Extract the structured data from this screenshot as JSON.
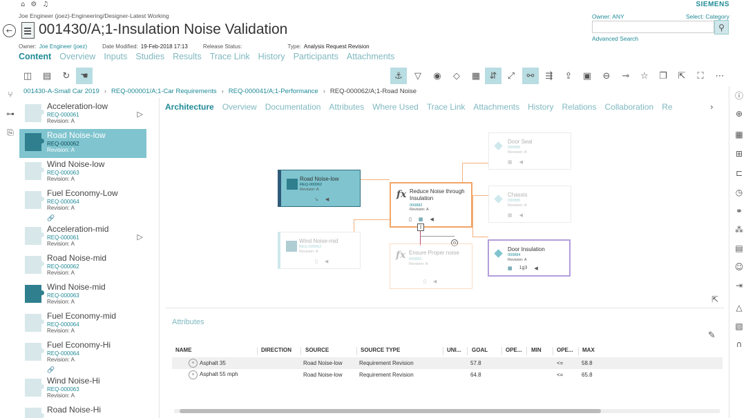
{
  "top": {
    "brand": "SIEMENS",
    "user_line": "Joe Engineer (joez)-Engineering/Designer-Latest Working",
    "owner_filter": "Owner: ANY",
    "select_category": "Select: Category",
    "advanced_search": "Advanced Search",
    "icons": [
      "home-icon",
      "gear-icon",
      "bell-icon"
    ]
  },
  "header": {
    "title": "001430/A;1-Insulation Noise Validation",
    "meta": {
      "owner_label": "Owner:",
      "owner_value": "Joe Engineer (joez)",
      "date_label": "Date Modified:",
      "date_value": "19-Feb-2018 17:13",
      "release_label": "Release Status:",
      "release_value": "",
      "type_label": "Type:",
      "type_value": "Analysis Request Revision"
    },
    "tabs": [
      "Content",
      "Overview",
      "Inputs",
      "Studies",
      "Results",
      "Trace Link",
      "History",
      "Participants",
      "Attachments"
    ]
  },
  "breadcrumb": [
    {
      "label": "001430-A-Small Car 2019",
      "link": true
    },
    {
      "label": "REQ-000001/A;1-Car Requirements",
      "link": true
    },
    {
      "label": "REQ-000041/A;1-Performance",
      "link": true
    },
    {
      "label": "REQ-000062/A;1-Road Noise",
      "link": false
    }
  ],
  "list": [
    {
      "name": "Acceleration-low",
      "id": "REQ-000061",
      "rev": "Revision:  A"
    },
    {
      "name": "Road Noise-low",
      "id": "REQ-000062",
      "rev": "Revision:  A"
    },
    {
      "name": "Wind Noise-low",
      "id": "REQ-000063",
      "rev": "Revision:  A"
    },
    {
      "name": "Fuel Economy-Low",
      "id": "REQ-000064",
      "rev": "Revision:  A"
    },
    {
      "name": "Acceleration-mid",
      "id": "REQ-000061",
      "rev": "Revision:  A"
    },
    {
      "name": "Road Noise-mid",
      "id": "REQ-000062",
      "rev": "Revision:  A"
    },
    {
      "name": "Wind Noise-mid",
      "id": "REQ-000063",
      "rev": "Revision:  A"
    },
    {
      "name": "Fuel Economy-mid",
      "id": "REQ-000064",
      "rev": "Revision:  A"
    },
    {
      "name": "Fuel Economy-Hi",
      "id": "REQ-000064",
      "rev": "Revision:  A"
    },
    {
      "name": "Wind Noise-Hi",
      "id": "REQ-000063",
      "rev": "Revision:  A"
    },
    {
      "name": "Road Noise-Hi",
      "id": "",
      "rev": ""
    }
  ],
  "content_tabs": [
    "Architecture",
    "Overview",
    "Documentation",
    "Attributes",
    "Where Used",
    "Trace Link",
    "Attachments",
    "History",
    "Relations",
    "Collaboration",
    "Re"
  ],
  "diagram": {
    "road_noise": {
      "title": "Road Noise-low",
      "id": "REQ-000062",
      "rev": "Revision: A"
    },
    "reduce_noise": {
      "title1": "Reduce Noise through",
      "title2": "Insulation",
      "id": "000882",
      "rev": "Revision: A"
    },
    "wind_noise": {
      "title": "Wind Noise-mid",
      "id": "REQ-000063",
      "rev": "Revision: A"
    },
    "ensure_proper": {
      "title": "Ensure Proper noise",
      "id": "000883",
      "rev": "Revision: A"
    },
    "door_seal": {
      "title": "Door Seal",
      "id": "000886",
      "rev": "Revision: A"
    },
    "chassis": {
      "title": "Chassis",
      "id": "000885",
      "rev": "Revision: A"
    },
    "door_insulation": {
      "title": "Door Insulation",
      "id": "000884",
      "rev": "Revision: A",
      "count": "1g3"
    }
  },
  "attributes": {
    "title": "Attributes",
    "columns": [
      "NAME",
      "DIRECTION",
      "SOURCE",
      "SOURCE TYPE",
      "UNI...",
      "GOAL",
      "OPE...",
      "MIN",
      "OPE...",
      "MAX"
    ],
    "rows": [
      {
        "name": "Asphalt 35",
        "direction": "",
        "source": "Road Noise-low",
        "source_type": "Requirement Revision",
        "unit": "",
        "goal": "57.8",
        "op1": "",
        "min": "",
        "op2": "<=",
        "max": "58.8"
      },
      {
        "name": "Asphalt 55 mph",
        "direction": "",
        "source": "Road Noise-low",
        "source_type": "Requirement Revision",
        "unit": "",
        "goal": "64.8",
        "op1": "",
        "min": "",
        "op2": "<=",
        "max": "65.8"
      }
    ]
  }
}
